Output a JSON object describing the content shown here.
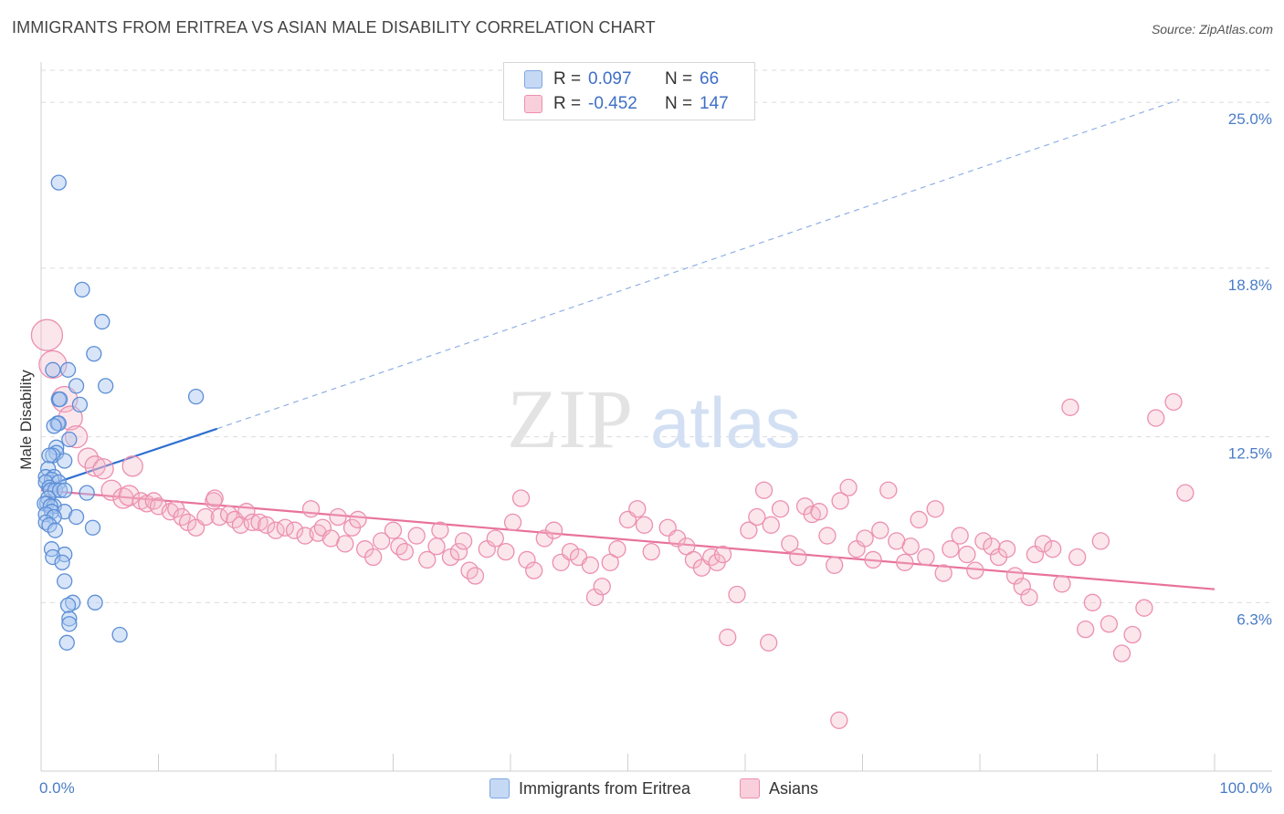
{
  "header": {
    "title": "IMMIGRANTS FROM ERITREA VS ASIAN MALE DISABILITY CORRELATION CHART",
    "source": "Source: ZipAtlas.com"
  },
  "watermark": {
    "zip": "ZIP",
    "atlas": "atlas"
  },
  "legend": {
    "rows": [
      {
        "r_label": "R =",
        "r_value": "0.097",
        "n_label": "N =",
        "n_value": "66",
        "color": "#a9c6ef"
      },
      {
        "r_label": "R =",
        "r_value": "-0.452",
        "n_label": "N =",
        "n_value": "147",
        "color": "#f4b6c9"
      }
    ]
  },
  "bottom_legend": [
    {
      "label": "Immigrants from Eritrea",
      "color": "#a9c6ef"
    },
    {
      "label": "Asians",
      "color": "#f4b6c9"
    }
  ],
  "colors": {
    "blue": "#4a7cc7",
    "blue_line": "#2e6fd1",
    "pink": "#e8729c",
    "pink_fill": "#f4b6c9",
    "grid": "#dcdcdc",
    "tick_text": "#4a7cc7"
  },
  "chart_data": {
    "type": "scatter",
    "title": "IMMIGRANTS FROM ERITREA VS ASIAN MALE DISABILITY CORRELATION CHART",
    "xlabel": "",
    "ylabel": "Male Disability",
    "xlim": [
      0,
      100
    ],
    "ylim": [
      0,
      26.2
    ],
    "x_tick_labels": [
      "0.0%",
      "100.0%"
    ],
    "y_ticks": [
      6.3,
      12.5,
      18.8,
      25.0
    ],
    "y_tick_labels": [
      "6.3%",
      "12.5%",
      "18.8%",
      "25.0%"
    ],
    "grid": "horizontal dashed",
    "legend_position": "top-center",
    "series": [
      {
        "name": "Immigrants from Eritrea",
        "color": "#4a7cc7",
        "trend": {
          "x": [
            0,
            15
          ],
          "y": [
            10.6,
            12.8
          ],
          "extended_to": [
            97,
            25.1
          ]
        },
        "points": [
          [
            1.5,
            22.0
          ],
          [
            3.5,
            18.0
          ],
          [
            5.2,
            16.8
          ],
          [
            4.5,
            15.6
          ],
          [
            2.3,
            15.0
          ],
          [
            1.0,
            15.0
          ],
          [
            5.5,
            14.4
          ],
          [
            3.0,
            14.4
          ],
          [
            13.2,
            14.0
          ],
          [
            1.5,
            13.9
          ],
          [
            1.6,
            13.9
          ],
          [
            3.3,
            13.7
          ],
          [
            1.4,
            13.0
          ],
          [
            1.5,
            13.0
          ],
          [
            1.1,
            12.9
          ],
          [
            2.4,
            12.4
          ],
          [
            1.3,
            12.1
          ],
          [
            1.3,
            11.9
          ],
          [
            1.0,
            11.8
          ],
          [
            0.7,
            11.8
          ],
          [
            2.0,
            11.6
          ],
          [
            0.6,
            11.3
          ],
          [
            0.4,
            11.0
          ],
          [
            1.1,
            11.0
          ],
          [
            0.9,
            10.9
          ],
          [
            0.4,
            10.8
          ],
          [
            1.5,
            10.8
          ],
          [
            0.7,
            10.6
          ],
          [
            0.8,
            10.5
          ],
          [
            1.2,
            10.5
          ],
          [
            1.6,
            10.5
          ],
          [
            2.0,
            10.5
          ],
          [
            3.9,
            10.4
          ],
          [
            0.6,
            10.2
          ],
          [
            0.5,
            10.0
          ],
          [
            0.3,
            10.0
          ],
          [
            1.1,
            9.9
          ],
          [
            0.8,
            9.9
          ],
          [
            0.9,
            9.7
          ],
          [
            2.0,
            9.7
          ],
          [
            0.4,
            9.6
          ],
          [
            1.1,
            9.5
          ],
          [
            3.0,
            9.5
          ],
          [
            0.4,
            9.3
          ],
          [
            0.7,
            9.2
          ],
          [
            4.4,
            9.1
          ],
          [
            1.2,
            9.0
          ],
          [
            0.9,
            8.3
          ],
          [
            2.0,
            8.1
          ],
          [
            1.0,
            8.0
          ],
          [
            1.8,
            7.8
          ],
          [
            2.0,
            7.1
          ],
          [
            4.6,
            6.3
          ],
          [
            2.7,
            6.3
          ],
          [
            2.3,
            6.2
          ],
          [
            2.4,
            5.7
          ],
          [
            2.4,
            5.5
          ],
          [
            6.7,
            5.1
          ],
          [
            2.2,
            4.8
          ]
        ]
      },
      {
        "name": "Asians",
        "color": "#e8729c",
        "trend": {
          "x": [
            0,
            100
          ],
          "y": [
            10.5,
            6.8
          ]
        },
        "points": [
          [
            0.5,
            16.3
          ],
          [
            1.0,
            15.2
          ],
          [
            2.0,
            13.9
          ],
          [
            2.5,
            13.2
          ],
          [
            3.0,
            12.5
          ],
          [
            4.0,
            11.7
          ],
          [
            4.6,
            11.4
          ],
          [
            5.3,
            11.3
          ],
          [
            7.8,
            11.4
          ],
          [
            6.0,
            10.5
          ],
          [
            7.0,
            10.2
          ],
          [
            7.5,
            10.3
          ],
          [
            8.5,
            10.1
          ],
          [
            9.0,
            10.0
          ],
          [
            9.6,
            10.1
          ],
          [
            10.0,
            9.9
          ],
          [
            11.0,
            9.7
          ],
          [
            11.5,
            9.8
          ],
          [
            12.0,
            9.5
          ],
          [
            12.5,
            9.3
          ],
          [
            13.2,
            9.1
          ],
          [
            14.0,
            9.5
          ],
          [
            14.7,
            10.1
          ],
          [
            15.2,
            9.5
          ],
          [
            16.0,
            9.6
          ],
          [
            16.5,
            9.4
          ],
          [
            17.0,
            9.2
          ],
          [
            17.5,
            9.7
          ],
          [
            18.0,
            9.3
          ],
          [
            18.6,
            9.3
          ],
          [
            19.2,
            9.2
          ],
          [
            20.0,
            9.0
          ],
          [
            20.8,
            9.1
          ],
          [
            21.6,
            9.0
          ],
          [
            22.5,
            8.8
          ],
          [
            23.0,
            9.8
          ],
          [
            23.6,
            8.9
          ],
          [
            24.0,
            9.1
          ],
          [
            24.7,
            8.7
          ],
          [
            25.3,
            9.5
          ],
          [
            25.9,
            8.5
          ],
          [
            26.5,
            9.1
          ],
          [
            27.0,
            9.4
          ],
          [
            27.6,
            8.3
          ],
          [
            28.3,
            8.0
          ],
          [
            29.0,
            8.6
          ],
          [
            30.0,
            9.0
          ],
          [
            30.5,
            8.4
          ],
          [
            31.0,
            8.2
          ],
          [
            32.0,
            8.8
          ],
          [
            32.9,
            7.9
          ],
          [
            33.7,
            8.4
          ],
          [
            34.0,
            9.0
          ],
          [
            34.9,
            8.0
          ],
          [
            35.6,
            8.2
          ],
          [
            36.0,
            8.6
          ],
          [
            36.5,
            7.5
          ],
          [
            37.0,
            7.3
          ],
          [
            38.0,
            8.3
          ],
          [
            38.7,
            8.7
          ],
          [
            39.6,
            8.2
          ],
          [
            40.2,
            9.3
          ],
          [
            40.9,
            10.2
          ],
          [
            41.4,
            7.9
          ],
          [
            42.0,
            7.5
          ],
          [
            42.9,
            8.7
          ],
          [
            43.7,
            9.0
          ],
          [
            44.3,
            7.8
          ],
          [
            45.1,
            8.2
          ],
          [
            45.8,
            8.0
          ],
          [
            46.8,
            7.7
          ],
          [
            47.2,
            6.5
          ],
          [
            47.8,
            6.9
          ],
          [
            48.5,
            7.8
          ],
          [
            49.1,
            8.3
          ],
          [
            50.0,
            9.4
          ],
          [
            50.8,
            9.8
          ],
          [
            51.4,
            9.2
          ],
          [
            52.0,
            8.2
          ],
          [
            53.4,
            9.1
          ],
          [
            54.2,
            8.7
          ],
          [
            55.0,
            8.4
          ],
          [
            55.6,
            7.9
          ],
          [
            56.3,
            7.6
          ],
          [
            57.1,
            8.0
          ],
          [
            57.6,
            7.8
          ],
          [
            58.1,
            8.1
          ],
          [
            59.3,
            6.6
          ],
          [
            60.3,
            9.0
          ],
          [
            61.0,
            9.5
          ],
          [
            61.6,
            10.5
          ],
          [
            62.2,
            9.2
          ],
          [
            63.0,
            9.8
          ],
          [
            63.8,
            8.5
          ],
          [
            64.5,
            8.0
          ],
          [
            65.1,
            9.9
          ],
          [
            65.7,
            9.6
          ],
          [
            66.3,
            9.7
          ],
          [
            67.0,
            8.8
          ],
          [
            67.6,
            7.7
          ],
          [
            68.1,
            10.1
          ],
          [
            68.8,
            10.6
          ],
          [
            69.5,
            8.3
          ],
          [
            70.2,
            8.7
          ],
          [
            70.9,
            7.9
          ],
          [
            71.5,
            9.0
          ],
          [
            72.2,
            10.5
          ],
          [
            72.9,
            8.6
          ],
          [
            73.6,
            7.8
          ],
          [
            74.1,
            8.4
          ],
          [
            74.8,
            9.4
          ],
          [
            75.4,
            8.0
          ],
          [
            76.2,
            9.8
          ],
          [
            76.9,
            7.4
          ],
          [
            77.5,
            8.3
          ],
          [
            78.3,
            8.8
          ],
          [
            78.9,
            8.1
          ],
          [
            79.6,
            7.5
          ],
          [
            80.3,
            8.6
          ],
          [
            81.0,
            8.4
          ],
          [
            81.6,
            8.0
          ],
          [
            82.3,
            8.3
          ],
          [
            83.0,
            7.3
          ],
          [
            83.6,
            6.9
          ],
          [
            84.2,
            6.5
          ],
          [
            84.7,
            8.1
          ],
          [
            85.4,
            8.5
          ],
          [
            86.2,
            8.3
          ],
          [
            87.0,
            7.0
          ],
          [
            87.7,
            13.6
          ],
          [
            88.3,
            8.0
          ],
          [
            89.0,
            5.3
          ],
          [
            89.6,
            6.3
          ],
          [
            90.3,
            8.6
          ],
          [
            91.0,
            5.5
          ],
          [
            92.1,
            4.4
          ],
          [
            93.0,
            5.1
          ],
          [
            94.0,
            6.1
          ],
          [
            95.0,
            13.2
          ],
          [
            96.5,
            13.8
          ],
          [
            97.5,
            10.4
          ],
          [
            68.0,
            1.9
          ],
          [
            62.0,
            4.8
          ],
          [
            58.5,
            5.0
          ],
          [
            14.8,
            10.2
          ]
        ]
      }
    ]
  }
}
